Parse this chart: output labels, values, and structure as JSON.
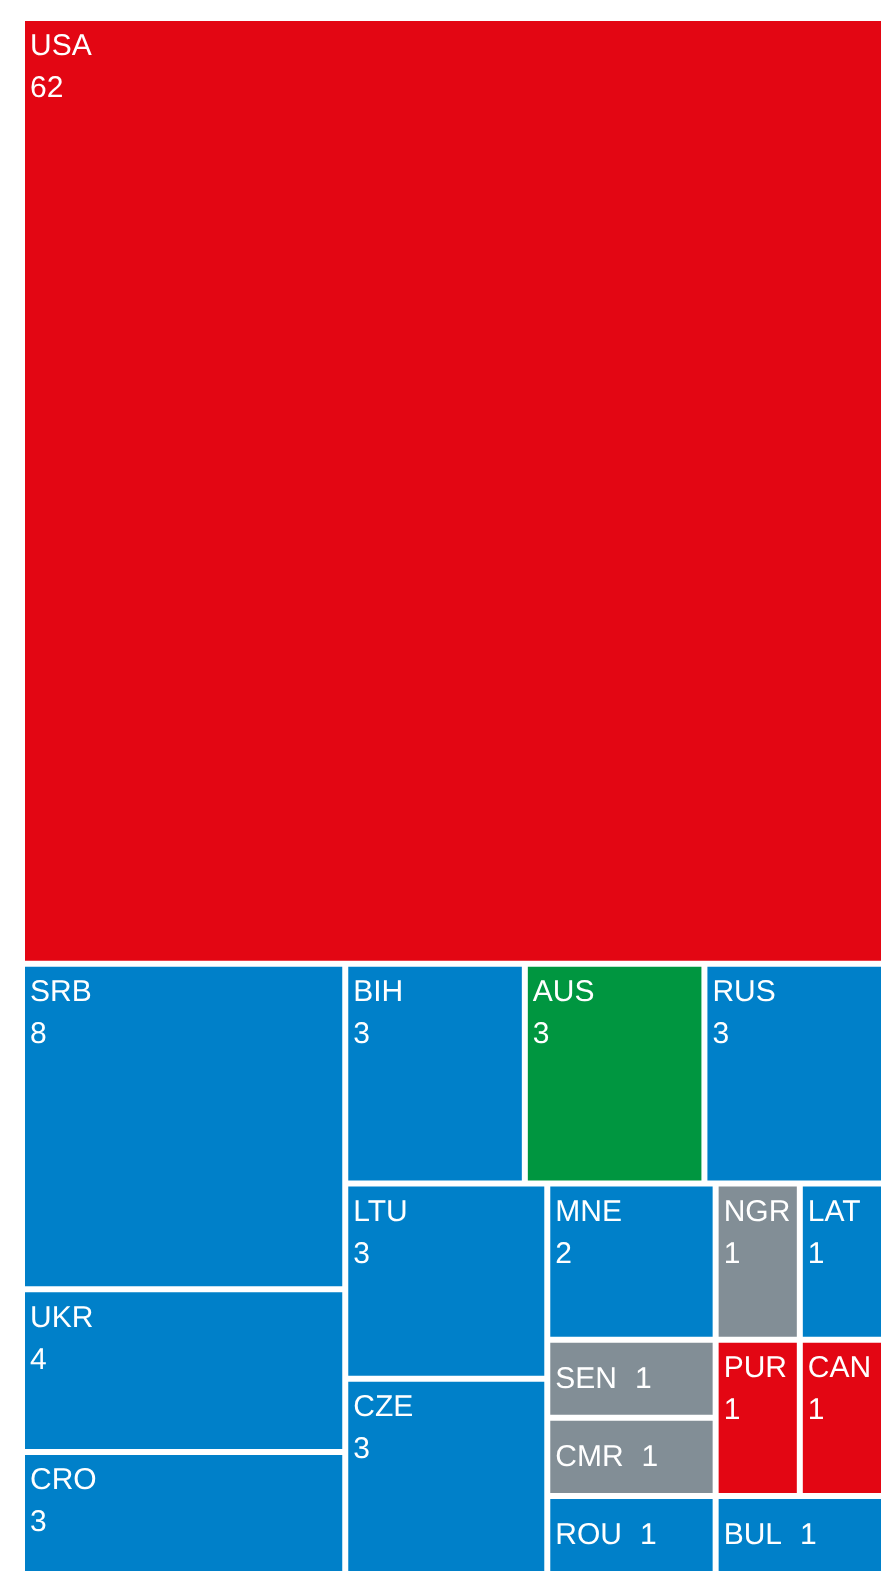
{
  "chart_data": {
    "type": "other",
    "categories": [
      "USA",
      "SRB",
      "UKR",
      "CRO",
      "BIH",
      "AUS",
      "RUS",
      "LTU",
      "CZE",
      "MNE",
      "NGR",
      "LAT",
      "SEN",
      "CMR",
      "ROU",
      "PUR",
      "CAN",
      "BUL"
    ],
    "values": [
      62,
      8,
      4,
      3,
      3,
      3,
      3,
      3,
      3,
      2,
      1,
      1,
      1,
      1,
      1,
      1,
      1,
      1
    ],
    "colors": [
      "#e30613",
      "#0080c9",
      "#0080c9",
      "#0080c9",
      "#0080c9",
      "#009640",
      "#0080c9",
      "#0080c9",
      "#0080c9",
      "#0080c9",
      "#828e96",
      "#0080c9",
      "#828e96",
      "#828e96",
      "#0080c9",
      "#e30613",
      "#e30613",
      "#0080c9"
    ],
    "data_labels": true
  }
}
